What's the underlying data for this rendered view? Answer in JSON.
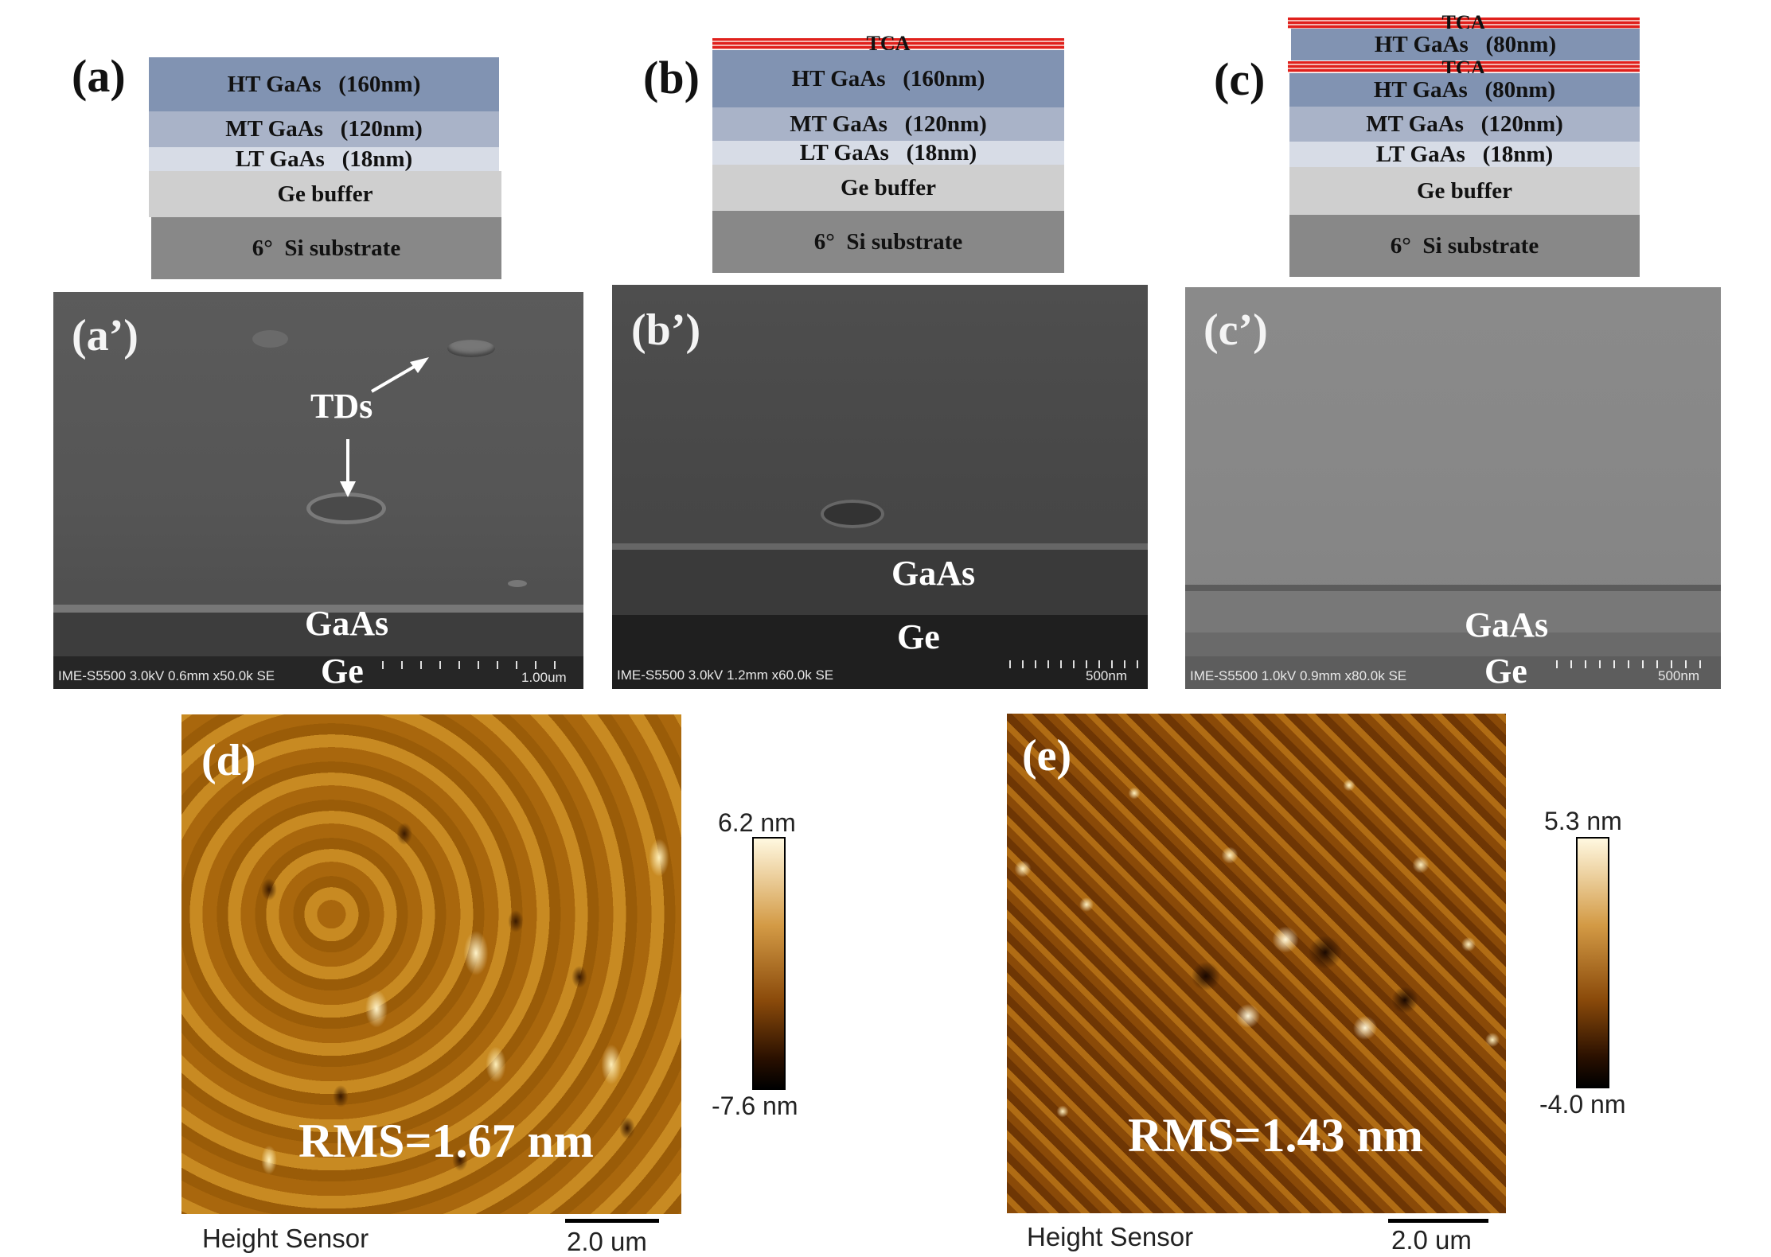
{
  "panels": {
    "a": {
      "label": "(a)",
      "layers": [
        "HT GaAs   (160nm)",
        "MT GaAs   (120nm)",
        "LT GaAs   (18nm)",
        "Ge buffer",
        "6°  Si substrate"
      ]
    },
    "b": {
      "label": "(b)",
      "tca": "TCA",
      "layers": [
        "HT GaAs   (160nm)",
        "MT GaAs   (120nm)",
        "LT GaAs   (18nm)",
        "Ge buffer",
        "6°  Si substrate"
      ]
    },
    "c": {
      "label": "(c)",
      "tca_top": "TCA",
      "ht_top": "HT GaAs   (80nm)",
      "tca_mid": "TCA",
      "layers": [
        "HT GaAs   (80nm)",
        "MT GaAs   (120nm)",
        "LT GaAs   (18nm)",
        "Ge buffer",
        "6°  Si substrate"
      ]
    },
    "a_sem": {
      "label": "(a’)",
      "annotation": "TDs",
      "gaas": "GaAs",
      "ge": "Ge",
      "info": "IME-S5500 3.0kV 0.6mm x50.0k SE",
      "scale": "1.00um"
    },
    "b_sem": {
      "label": "(b’)",
      "gaas": "GaAs",
      "ge": "Ge",
      "info": "IME-S5500 3.0kV 1.2mm x60.0k SE",
      "scale": "500nm"
    },
    "c_sem": {
      "label": "(c’)",
      "gaas": "GaAs",
      "ge": "Ge",
      "info": "IME-S5500 1.0kV 0.9mm x80.0k SE",
      "scale": "500nm"
    },
    "d": {
      "label": "(d)",
      "rms": "RMS=1.67 nm",
      "cbar_max": "6.2 nm",
      "cbar_min": "-7.6 nm",
      "sensor": "Height Sensor",
      "scale": "2.0 um"
    },
    "e": {
      "label": "(e)",
      "rms": "RMS=1.43 nm",
      "cbar_max": "5.3 nm",
      "cbar_min": "-4.0 nm",
      "sensor": "Height Sensor",
      "scale": "2.0 um"
    }
  },
  "colors": {
    "ht": "#8193b2",
    "mt": "#a9b3c8",
    "lt": "#d7dce6",
    "ge": "#cfcfcf",
    "si": "#888888",
    "tca": "#e0201c",
    "afm_dark": "#2a1400",
    "afm_mid": "#b8730f",
    "afm_light": "#fff6d8"
  }
}
